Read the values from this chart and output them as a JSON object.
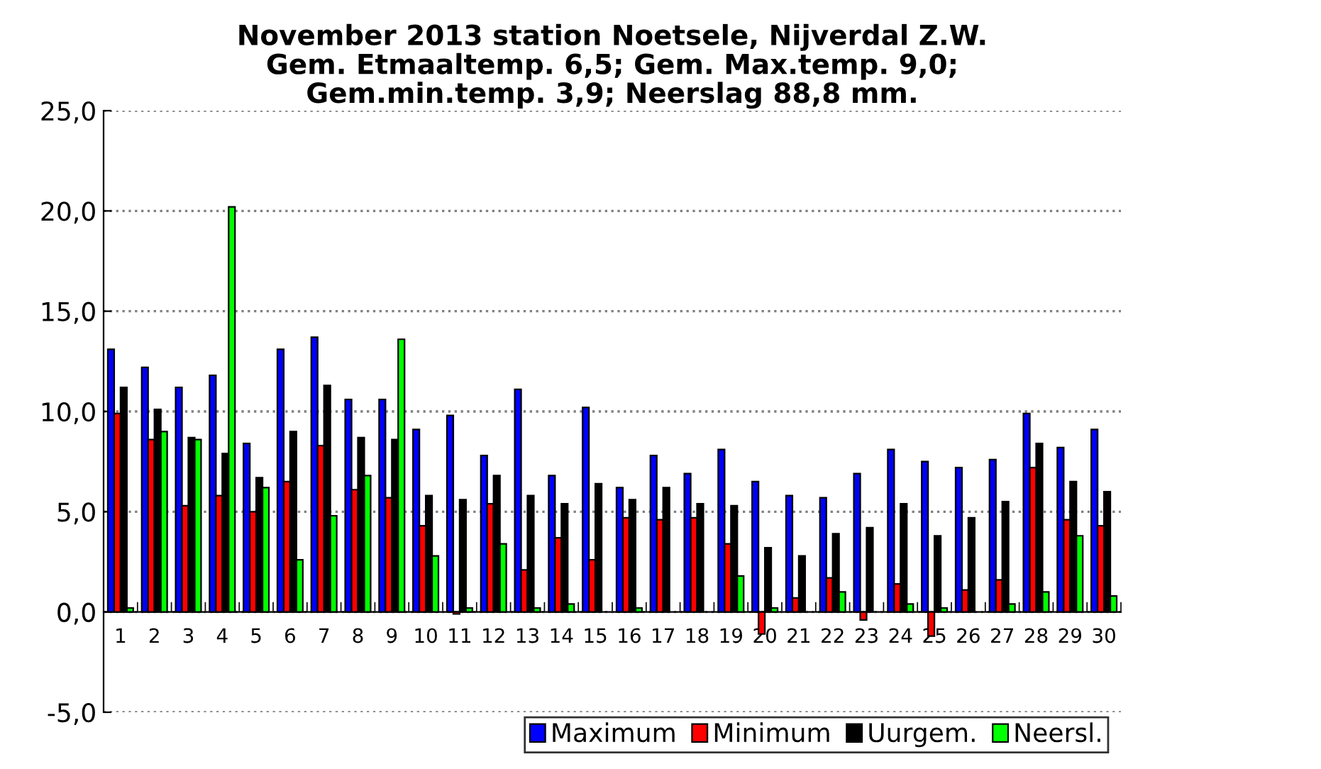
{
  "chart_data": {
    "type": "bar",
    "title": "November 2013 station Noetsele, Nijverdal Z.W.\nGem. Etmaaltemp. 6,5; Gem. Max.temp. 9,0;\nGem.min.temp. 3,9; Neerslag 88,8 mm.",
    "categories": [
      "1",
      "2",
      "3",
      "4",
      "5",
      "6",
      "7",
      "8",
      "9",
      "10",
      "11",
      "12",
      "13",
      "14",
      "15",
      "16",
      "17",
      "18",
      "19",
      "20",
      "21",
      "22",
      "23",
      "24",
      "25",
      "26",
      "27",
      "28",
      "29",
      "30"
    ],
    "series": [
      {
        "name": "Maximum",
        "color": "#0000ff",
        "values": [
          13.1,
          12.2,
          11.2,
          11.8,
          8.4,
          13.1,
          13.7,
          10.6,
          10.6,
          9.1,
          9.8,
          7.8,
          11.1,
          6.8,
          10.2,
          6.2,
          7.8,
          6.9,
          8.1,
          6.5,
          5.8,
          5.7,
          6.9,
          8.1,
          7.5,
          7.2,
          7.6,
          9.9,
          8.2,
          9.1
        ]
      },
      {
        "name": "Minimum",
        "color": "#ff0000",
        "values": [
          9.9,
          8.6,
          5.3,
          5.8,
          5.0,
          6.5,
          8.3,
          6.1,
          5.7,
          4.3,
          -0.1,
          5.4,
          2.1,
          3.7,
          2.6,
          4.7,
          4.6,
          4.7,
          3.4,
          -1.1,
          0.7,
          1.7,
          -0.4,
          1.4,
          -1.2,
          1.1,
          1.6,
          7.2,
          4.6,
          4.3
        ]
      },
      {
        "name": "Uurgem.",
        "color": "#000000",
        "values": [
          11.2,
          10.1,
          8.7,
          7.9,
          6.7,
          9.0,
          11.3,
          8.7,
          8.6,
          5.8,
          5.6,
          6.8,
          5.8,
          5.4,
          6.4,
          5.6,
          6.2,
          5.4,
          5.3,
          3.2,
          2.8,
          3.9,
          4.2,
          5.4,
          3.8,
          4.7,
          5.5,
          8.4,
          6.5,
          6.0
        ]
      },
      {
        "name": "Neersl.",
        "color": "#00ff00",
        "values": [
          0.2,
          9.0,
          8.6,
          20.2,
          6.2,
          2.6,
          4.8,
          6.8,
          13.6,
          2.8,
          0.2,
          3.4,
          0.2,
          0.4,
          0,
          0.2,
          0,
          0,
          1.8,
          0.2,
          0,
          1.0,
          0,
          0.4,
          0.2,
          0,
          0.4,
          1.0,
          3.8,
          0.8
        ]
      }
    ],
    "ylim": [
      -5,
      25
    ],
    "yticks": [
      {
        "value": -5,
        "label": "-5,0"
      },
      {
        "value": 0,
        "label": "0,0"
      },
      {
        "value": 5,
        "label": "5,0"
      },
      {
        "value": 10,
        "label": "10,0"
      },
      {
        "value": 15,
        "label": "15,0"
      },
      {
        "value": 20,
        "label": "20,0"
      },
      {
        "value": 25,
        "label": "25,0"
      }
    ],
    "grid": "y",
    "legend": "bottom"
  }
}
